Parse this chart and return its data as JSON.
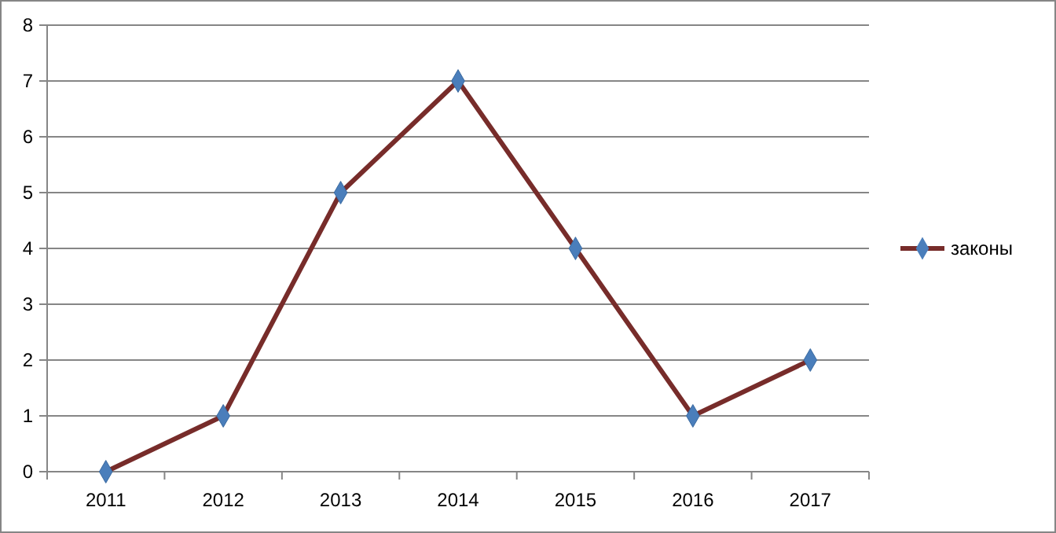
{
  "chart_data": {
    "type": "line",
    "categories": [
      "2011",
      "2012",
      "2013",
      "2014",
      "2015",
      "2016",
      "2017"
    ],
    "series": [
      {
        "name": "законы",
        "color": "#772c2a",
        "values": [
          0,
          1,
          5,
          7,
          4,
          1,
          2
        ]
      }
    ],
    "ylim": [
      0,
      8
    ],
    "yticks": [
      0,
      1,
      2,
      3,
      4,
      5,
      6,
      7,
      8
    ],
    "grid": "y",
    "legend": "right",
    "marker": "diamond",
    "line_style": "solid"
  }
}
